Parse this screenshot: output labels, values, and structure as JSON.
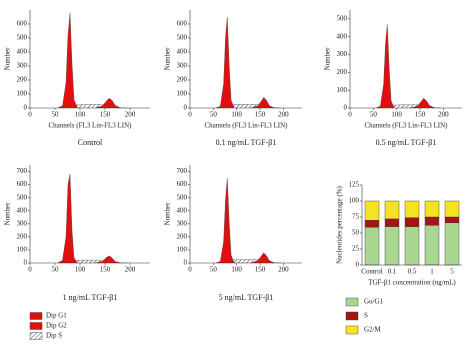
{
  "legend": [
    {
      "name": "Dip G1",
      "color": "#e01010"
    },
    {
      "name": "Dip G2",
      "color": "#e01010"
    },
    {
      "name": "Dip S",
      "color": "#3a3a6a",
      "pattern": "hatch"
    }
  ],
  "chart_data": [
    {
      "type": "histogram",
      "ylabel": "Number",
      "xlabel": "Channels (FL3 Lin-FL3 LIN)",
      "caption": "Control",
      "x": [
        55,
        65,
        72,
        76,
        80,
        84,
        88,
        95,
        110,
        130,
        145,
        152,
        158,
        164,
        170,
        180,
        195
      ],
      "series": [
        {
          "values": [
            0,
            15,
            180,
            520,
            680,
            320,
            60,
            0,
            null,
            null,
            null,
            null,
            null,
            null,
            null,
            null,
            null
          ]
        },
        {
          "values": [
            null,
            null,
            null,
            null,
            null,
            null,
            null,
            null,
            null,
            0,
            15,
            45,
            70,
            55,
            20,
            2,
            0
          ]
        },
        {
          "values": [
            null,
            0,
            10,
            15,
            18,
            20,
            20,
            22,
            25,
            25,
            25,
            20,
            10,
            5,
            2,
            0,
            null
          ]
        }
      ],
      "xlim": [
        0,
        240
      ],
      "xticks": [
        0,
        50,
        100,
        150,
        200
      ],
      "ylim": [
        0,
        700
      ],
      "yticks": [
        0,
        100,
        200,
        300,
        400,
        500,
        600
      ]
    },
    {
      "type": "histogram",
      "ylabel": "Number",
      "xlabel": "Channels (FL3 Lin-FL3 LIN)",
      "caption": "0.1 ng/mL TGF-β1",
      "x": [
        55,
        65,
        72,
        76,
        80,
        84,
        88,
        95,
        110,
        130,
        145,
        152,
        158,
        164,
        170,
        180,
        195
      ],
      "series": [
        {
          "values": [
            0,
            12,
            170,
            500,
            650,
            300,
            55,
            0,
            null,
            null,
            null,
            null,
            null,
            null,
            null,
            null,
            null
          ]
        },
        {
          "values": [
            null,
            null,
            null,
            null,
            null,
            null,
            null,
            null,
            null,
            0,
            15,
            45,
            75,
            55,
            18,
            2,
            0
          ]
        },
        {
          "values": [
            null,
            0,
            10,
            15,
            18,
            20,
            22,
            24,
            26,
            26,
            25,
            20,
            10,
            5,
            2,
            0,
            null
          ]
        }
      ],
      "xlim": [
        0,
        240
      ],
      "xticks": [
        0,
        50,
        100,
        150,
        200
      ],
      "ylim": [
        0,
        700
      ],
      "yticks": [
        0,
        100,
        200,
        300,
        400,
        500,
        600
      ]
    },
    {
      "type": "histogram",
      "ylabel": "Number",
      "xlabel": "Channels (FL3 Lin-FL3 LIN)",
      "caption": "0.5 ng/mL TGF-β1",
      "x": [
        55,
        65,
        72,
        76,
        80,
        84,
        88,
        95,
        110,
        130,
        145,
        152,
        158,
        164,
        170,
        180,
        195
      ],
      "series": [
        {
          "values": [
            0,
            10,
            130,
            360,
            470,
            220,
            40,
            0,
            null,
            null,
            null,
            null,
            null,
            null,
            null,
            null,
            null
          ]
        },
        {
          "values": [
            null,
            null,
            null,
            null,
            null,
            null,
            null,
            null,
            null,
            0,
            12,
            35,
            55,
            40,
            15,
            2,
            0
          ]
        },
        {
          "values": [
            null,
            0,
            8,
            12,
            14,
            15,
            15,
            16,
            18,
            18,
            18,
            15,
            8,
            4,
            2,
            0,
            null
          ]
        }
      ],
      "xlim": [
        0,
        240
      ],
      "xticks": [
        0,
        50,
        100,
        150,
        200
      ],
      "ylim": [
        0,
        550
      ],
      "yticks": [
        0,
        100,
        200,
        300,
        400,
        500
      ]
    },
    {
      "type": "histogram",
      "ylabel": "Number",
      "caption": "1 ng/mL TGF-β1",
      "x": [
        55,
        65,
        72,
        76,
        80,
        84,
        88,
        95,
        110,
        130,
        145,
        152,
        158,
        164,
        170,
        180,
        195
      ],
      "series": [
        {
          "values": [
            0,
            20,
            200,
            600,
            680,
            250,
            40,
            0,
            null,
            null,
            null,
            null,
            null,
            null,
            null,
            null,
            null
          ]
        },
        {
          "values": [
            null,
            null,
            null,
            null,
            null,
            null,
            null,
            null,
            null,
            0,
            12,
            40,
            55,
            40,
            12,
            2,
            0
          ]
        },
        {
          "values": [
            null,
            0,
            10,
            14,
            16,
            18,
            18,
            20,
            22,
            22,
            22,
            18,
            9,
            4,
            2,
            0,
            null
          ]
        }
      ],
      "xlim": [
        0,
        240
      ],
      "xticks": [
        0,
        50,
        100,
        150,
        200
      ],
      "ylim": [
        0,
        750
      ],
      "yticks": [
        0,
        100,
        200,
        300,
        400,
        500,
        600,
        700
      ]
    },
    {
      "type": "histogram",
      "ylabel": "Number",
      "caption": "5 ng/mL TGF-β1",
      "x": [
        55,
        65,
        72,
        76,
        80,
        84,
        88,
        95,
        110,
        130,
        145,
        152,
        158,
        164,
        170,
        180,
        195
      ],
      "series": [
        {
          "values": [
            0,
            12,
            160,
            480,
            650,
            310,
            60,
            0,
            null,
            null,
            null,
            null,
            null,
            null,
            null,
            null,
            null
          ]
        },
        {
          "values": [
            null,
            null,
            null,
            null,
            null,
            null,
            null,
            null,
            null,
            0,
            18,
            50,
            78,
            55,
            18,
            2,
            0
          ]
        },
        {
          "values": [
            null,
            0,
            10,
            15,
            18,
            20,
            22,
            24,
            26,
            26,
            25,
            20,
            10,
            5,
            2,
            0,
            null
          ]
        }
      ],
      "xlim": [
        0,
        240
      ],
      "xticks": [
        0,
        50,
        100,
        150,
        200
      ],
      "ylim": [
        0,
        750
      ],
      "yticks": [
        0,
        100,
        200,
        300,
        400,
        500,
        600,
        700
      ]
    },
    {
      "type": "stacked_bar",
      "ylabel": "Nucleotides percentage (%)",
      "xlabel": "TGF-β1 concentration (ng/mL)",
      "categories": [
        "Control",
        "0.1",
        "0.5",
        "1",
        "5"
      ],
      "series": [
        {
          "name": "Go/G1",
          "color": "#a9d690",
          "values": [
            59,
            60,
            60,
            62,
            66
          ]
        },
        {
          "name": "S",
          "color": "#a51515",
          "values": [
            11,
            12,
            14,
            13,
            9
          ]
        },
        {
          "name": "G2/M",
          "color": "#f6e324",
          "values": [
            30,
            28,
            26,
            25,
            25
          ]
        }
      ],
      "ylim": [
        0,
        125
      ],
      "yticks": [
        0,
        25,
        50,
        75,
        100,
        125
      ]
    }
  ]
}
